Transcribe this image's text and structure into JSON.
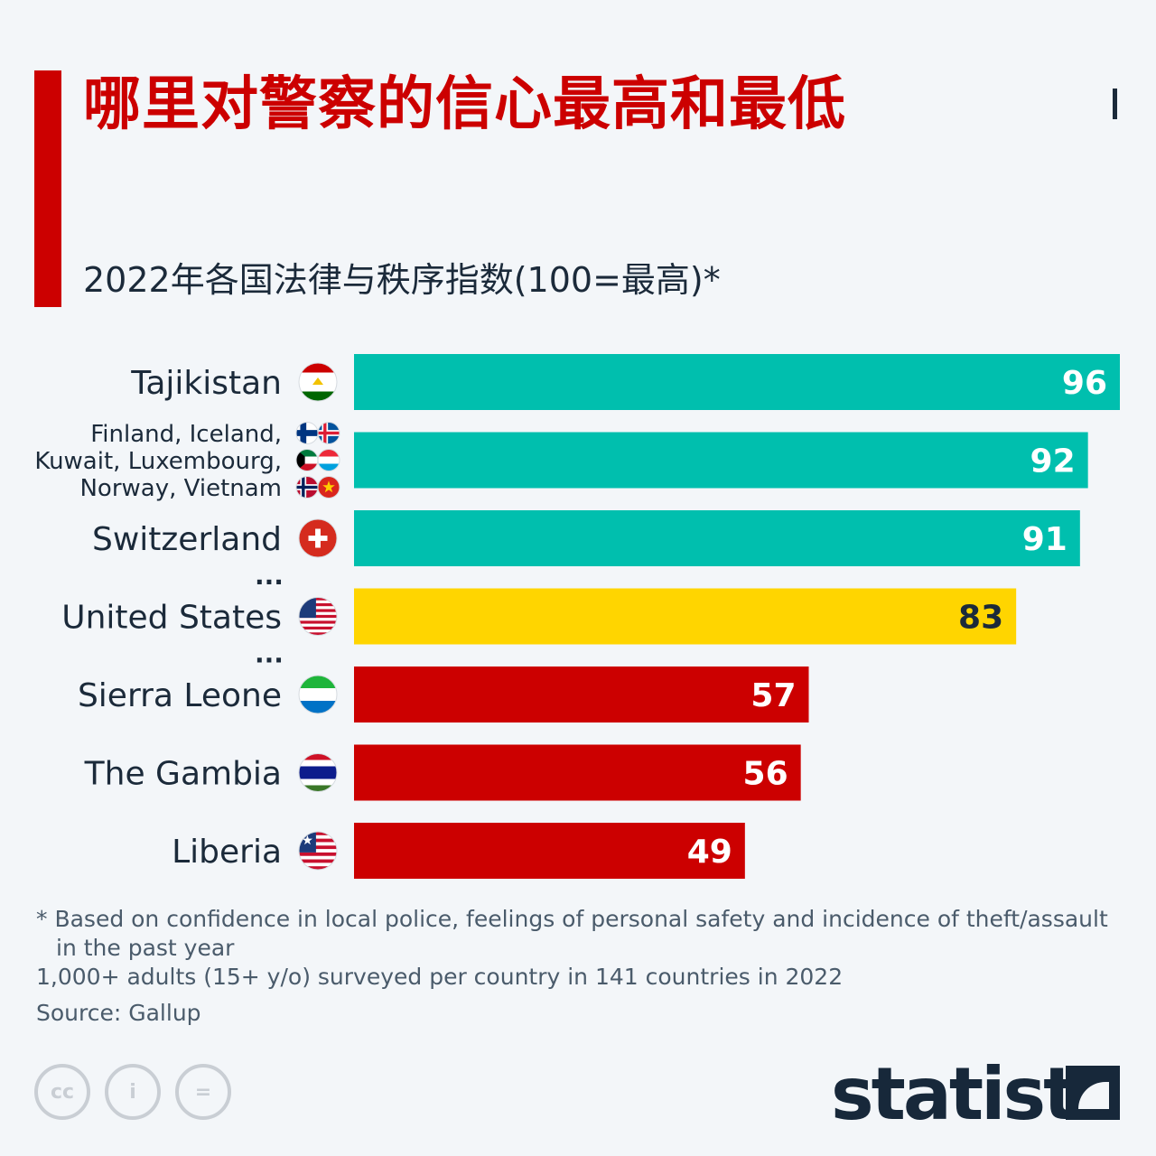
{
  "title": "哪里对警察的信心最高和最低",
  "subtitle": "2022年各国法律与秩序指数(100=最高)*",
  "colors": {
    "accent": "#cc0000",
    "top_bar": "#00bfae",
    "us_bar": "#ffd500",
    "bottom_bar": "#cc0000",
    "value_light": "#ffffff",
    "value_dark": "#1b2a3a"
  },
  "chart_data": {
    "type": "bar",
    "orientation": "horizontal",
    "xlim": [
      0,
      96
    ],
    "grid": false,
    "categories": [
      "Tajikistan",
      "Finland, Iceland, Kuwait, Luxembourg, Norway, Vietnam",
      "Switzerland",
      "United States",
      "Sierra Leone",
      "The Gambia",
      "Liberia"
    ],
    "category_lines": [
      [
        "Tajikistan"
      ],
      [
        "Finland, Iceland,",
        "Kuwait, Luxembourg,",
        "Norway, Vietnam"
      ],
      [
        "Switzerland"
      ],
      [
        "United States"
      ],
      [
        "Sierra Leone"
      ],
      [
        "The Gambia"
      ],
      [
        "Liberia"
      ]
    ],
    "values": [
      96,
      92,
      91,
      83,
      57,
      56,
      49
    ],
    "bar_groups": [
      "top",
      "top",
      "top",
      "us",
      "bottom",
      "bottom",
      "bottom"
    ],
    "flag_icons": [
      [
        "tajikistan-flag-icon"
      ],
      [
        "finland-flag-icon",
        "iceland-flag-icon",
        "kuwait-flag-icon",
        "luxembourg-flag-icon",
        "norway-flag-icon",
        "vietnam-flag-icon"
      ],
      [
        "switzerland-flag-icon"
      ],
      [
        "united-states-flag-icon"
      ],
      [
        "sierra-leone-flag-icon"
      ],
      [
        "the-gambia-flag-icon"
      ],
      [
        "liberia-flag-icon"
      ]
    ],
    "gap_marker": "...",
    "gaps_after": [
      2,
      3
    ]
  },
  "footnotes": {
    "definition_line1": "* Based on confidence in local police, feelings of personal safety and incidence of theft/assault",
    "definition_line2": "in the past year",
    "survey": "1,000+ adults (15+ y/o) surveyed per country in 141 countries in 2022",
    "source": "Source: Gallup"
  },
  "license_icons": [
    "creative-commons-icon",
    "attribution-icon",
    "no-derivatives-icon"
  ],
  "license_labels": [
    "cc",
    "i",
    "="
  ],
  "brand": "statista"
}
